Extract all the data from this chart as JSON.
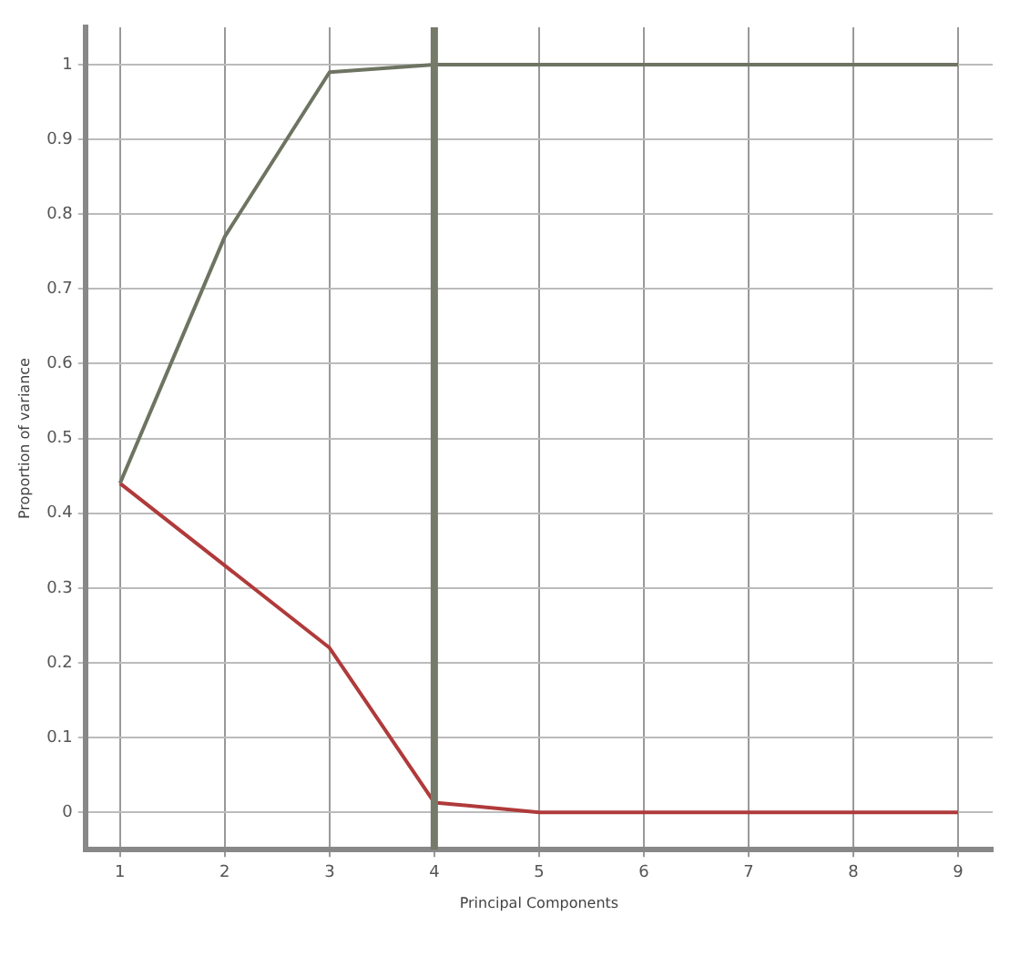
{
  "chart_data": {
    "type": "line",
    "xlabel": "Principal Components",
    "ylabel": "Proportion of variance",
    "x": [
      1,
      2,
      3,
      4,
      5,
      6,
      7,
      8,
      9
    ],
    "series": [
      {
        "color": "#6e7462",
        "values": [
          0.44,
          0.77,
          0.99,
          1,
          1,
          1,
          1,
          1,
          1
        ]
      },
      {
        "color": "#b03a3a",
        "values": [
          0.44,
          0.33,
          0.22,
          0.013,
          0,
          0,
          0,
          0,
          0
        ]
      }
    ],
    "xlim": [
      0.67,
      9.33
    ],
    "xticks": [
      1,
      2,
      3,
      4,
      5,
      6,
      7,
      8,
      9
    ],
    "ylim": [
      -0.05,
      1.05
    ],
    "yticks": [
      0,
      0.1,
      0.2,
      0.3,
      0.4,
      0.5,
      0.6,
      0.7,
      0.8,
      0.9,
      1
    ],
    "grid": true,
    "legend": false,
    "marker": "none",
    "line_style": "solid",
    "ref_lines": [
      {
        "axis": "x",
        "value": 4,
        "color": "#767a68"
      }
    ]
  }
}
